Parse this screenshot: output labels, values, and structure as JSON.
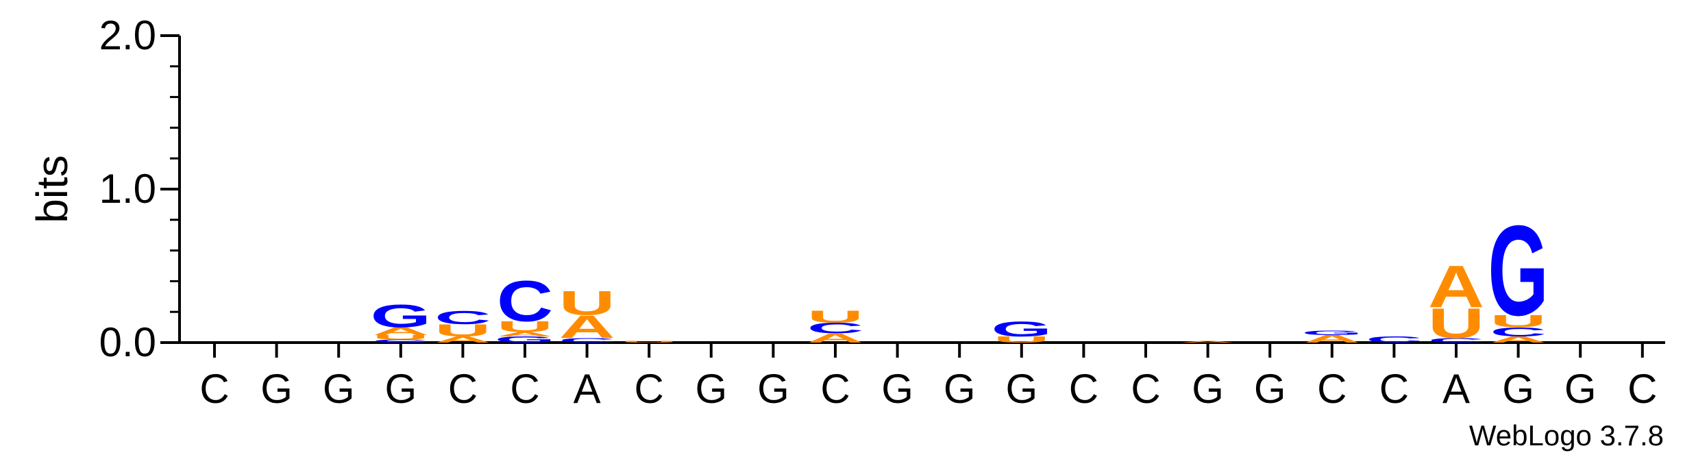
{
  "chart_data": {
    "type": "sequence-logo",
    "ylabel": "bits",
    "ylim": [
      0,
      2.0
    ],
    "yticks": [
      {
        "value": 0.0,
        "label": "0.0"
      },
      {
        "value": 1.0,
        "label": "1.0"
      },
      {
        "value": 2.0,
        "label": "2.0"
      }
    ],
    "x_labels": [
      "C",
      "G",
      "G",
      "G",
      "C",
      "C",
      "A",
      "C",
      "G",
      "G",
      "C",
      "G",
      "G",
      "G",
      "C",
      "C",
      "G",
      "G",
      "C",
      "C",
      "A",
      "G",
      "G",
      "C"
    ],
    "colors": {
      "G": "#0000ff",
      "C": "#0000ff",
      "A": "#ff8c00",
      "U": "#ff8c00"
    },
    "columns": [
      {
        "letters": []
      },
      {
        "letters": []
      },
      {
        "letters": []
      },
      {
        "letters": [
          {
            "l": "C",
            "h": 0.02
          },
          {
            "l": "U",
            "h": 0.03
          },
          {
            "l": "A",
            "h": 0.05
          },
          {
            "l": "G",
            "h": 0.15
          }
        ]
      },
      {
        "letters": [
          {
            "l": "A",
            "h": 0.04
          },
          {
            "l": "U",
            "h": 0.08
          },
          {
            "l": "C",
            "h": 0.09
          }
        ]
      },
      {
        "letters": [
          {
            "l": "G",
            "h": 0.04
          },
          {
            "l": "A",
            "h": 0.03
          },
          {
            "l": "U",
            "h": 0.07
          },
          {
            "l": "C",
            "h": 0.27
          }
        ]
      },
      {
        "letters": [
          {
            "l": "C",
            "h": 0.03
          },
          {
            "l": "A",
            "h": 0.15
          },
          {
            "l": "U",
            "h": 0.16
          }
        ]
      },
      {
        "letters": [
          {
            "l": "U",
            "h": 0.01
          }
        ]
      },
      {
        "letters": []
      },
      {
        "letters": []
      },
      {
        "letters": [
          {
            "l": "A",
            "h": 0.06
          },
          {
            "l": "C",
            "h": 0.07
          },
          {
            "l": "U",
            "h": 0.08
          }
        ]
      },
      {
        "letters": []
      },
      {
        "letters": []
      },
      {
        "letters": [
          {
            "l": "U",
            "h": 0.04
          },
          {
            "l": "G",
            "h": 0.1
          }
        ]
      },
      {
        "letters": []
      },
      {
        "letters": []
      },
      {
        "letters": [
          {
            "l": "A",
            "h": 0.01
          }
        ]
      },
      {
        "letters": []
      },
      {
        "letters": [
          {
            "l": "A",
            "h": 0.05
          },
          {
            "l": "G",
            "h": 0.03
          }
        ]
      },
      {
        "letters": [
          {
            "l": "C",
            "h": 0.04
          }
        ]
      },
      {
        "letters": [
          {
            "l": "C",
            "h": 0.03
          },
          {
            "l": "U",
            "h": 0.2
          },
          {
            "l": "A",
            "h": 0.28
          }
        ]
      },
      {
        "letters": [
          {
            "l": "A",
            "h": 0.04
          },
          {
            "l": "C",
            "h": 0.06
          },
          {
            "l": "U",
            "h": 0.08
          },
          {
            "l": "G",
            "h": 0.6
          }
        ]
      },
      {
        "letters": []
      },
      {
        "letters": []
      }
    ]
  },
  "credit": "WebLogo 3.7.8"
}
